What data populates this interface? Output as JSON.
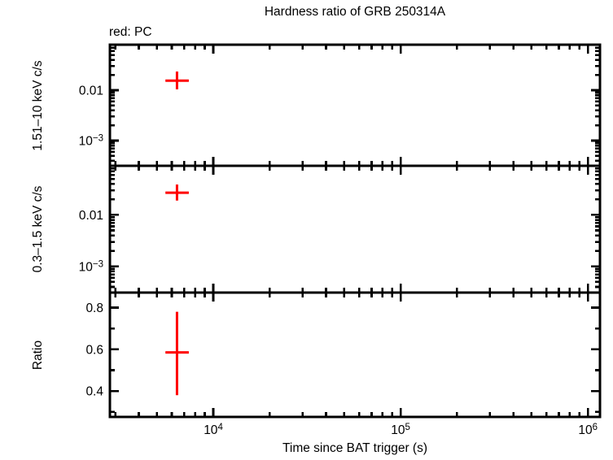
{
  "page": {
    "background": "#ffffff",
    "text_color": "#000000"
  },
  "chart_data": {
    "type": "scatter",
    "title": "Hardness ratio of GRB 250314A",
    "legend": {
      "text": "red: PC",
      "series_color": "#ff0000"
    },
    "xlabel": "Time since BAT trigger (s)",
    "grid": "off",
    "x_axis": {
      "scale": "log",
      "min": 2805,
      "max": 1160000,
      "major_ticks": [
        10000,
        100000,
        1000000
      ],
      "major_tick_labels": [
        "10^4",
        "10^5",
        "10^6"
      ]
    },
    "panels": [
      {
        "id": "hard-rate",
        "ylabel": "1.51–10 keV c/s",
        "y_axis": {
          "scale": "log",
          "min": 0.000316,
          "max": 0.08,
          "major_ticks": [
            0.01,
            0.001
          ],
          "major_tick_labels": [
            "0.01",
            "10^−3"
          ]
        },
        "series": [
          {
            "name": "PC",
            "color": "#ff0000",
            "points": [
              {
                "x": 6400,
                "x_lo": 5550,
                "x_hi": 7400,
                "y": 0.0155,
                "y_lo": 0.0104,
                "y_hi": 0.0235
              }
            ]
          }
        ]
      },
      {
        "id": "soft-rate",
        "ylabel": "0.3–1.5 keV c/s",
        "y_axis": {
          "scale": "log",
          "min": 0.00031,
          "max": 0.09,
          "major_ticks": [
            0.01,
            0.001
          ],
          "major_tick_labels": [
            "0.01",
            "10^−3"
          ]
        },
        "series": [
          {
            "name": "PC",
            "color": "#ff0000",
            "points": [
              {
                "x": 6400,
                "x_lo": 5550,
                "x_hi": 7400,
                "y": 0.027,
                "y_lo": 0.019,
                "y_hi": 0.039
              }
            ]
          }
        ]
      },
      {
        "id": "ratio",
        "ylabel": "Ratio",
        "y_axis": {
          "scale": "linear",
          "min": 0.276,
          "max": 0.872,
          "major_ticks": [
            0.4,
            0.6,
            0.8
          ],
          "major_tick_labels": [
            "0.4",
            "0.6",
            "0.8"
          ],
          "minor_ticks": [
            0.3,
            0.5,
            0.7
          ]
        },
        "series": [
          {
            "name": "PC",
            "color": "#ff0000",
            "points": [
              {
                "x": 6400,
                "x_lo": 5550,
                "x_hi": 7400,
                "y": 0.585,
                "y_lo": 0.38,
                "y_hi": 0.78
              }
            ]
          }
        ]
      }
    ]
  }
}
